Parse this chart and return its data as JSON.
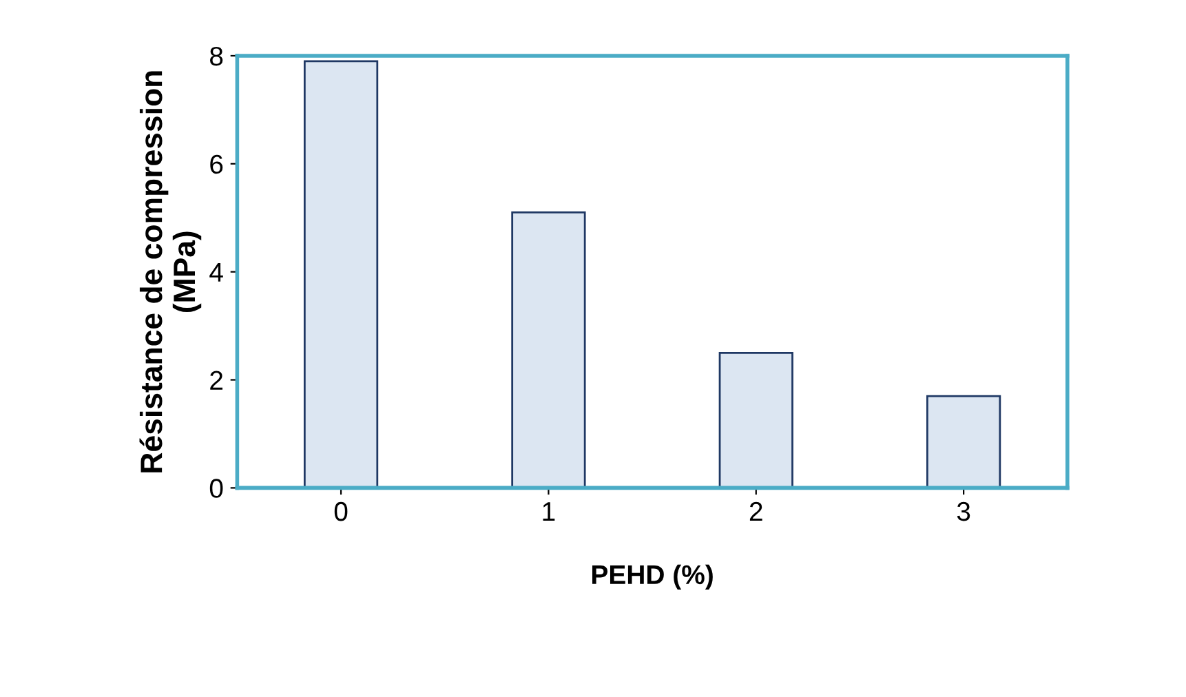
{
  "chart_data": {
    "type": "bar",
    "xlabel": "PEHD (%)",
    "ylabel": "Résistance de compression\n(MPa)",
    "categories": [
      "0",
      "1",
      "2",
      "3"
    ],
    "values": [
      7.9,
      5.1,
      2.5,
      1.7
    ],
    "color": "#dce6f2",
    "ylim": [
      0,
      8
    ],
    "yticks": [
      0,
      2,
      4,
      6,
      8
    ],
    "grid": false
  }
}
